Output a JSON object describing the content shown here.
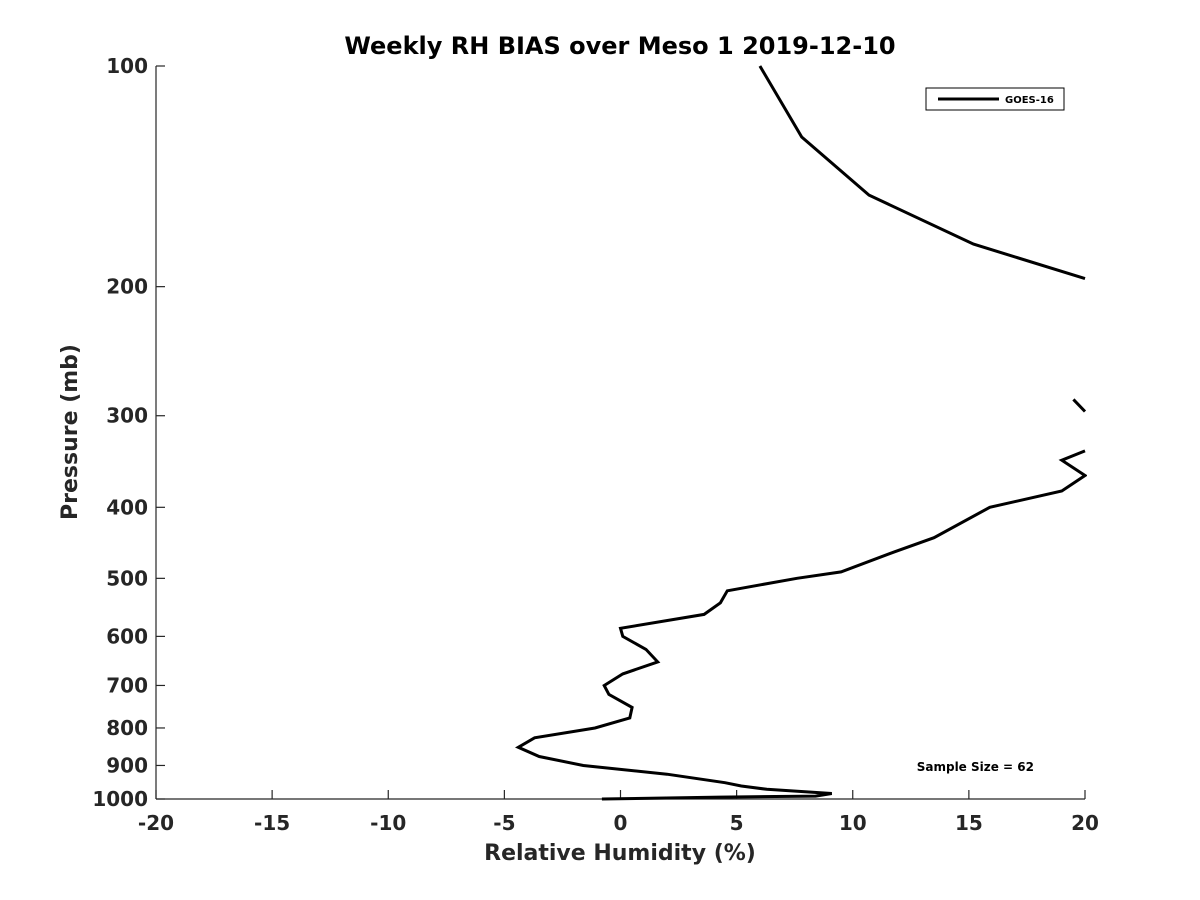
{
  "chart_data": {
    "type": "line",
    "title": "Weekly RH BIAS over Meso 1 2019-12-10",
    "xlabel": "Relative Humidity (%)",
    "ylabel": "Pressure (mb)",
    "xlim": [
      -20,
      20
    ],
    "ylim": [
      100,
      1000
    ],
    "y_scale": "log",
    "y_reversed": true,
    "x_ticks": [
      -20,
      -15,
      -10,
      -5,
      0,
      5,
      10,
      15,
      20
    ],
    "y_ticks": [
      100,
      200,
      300,
      400,
      500,
      600,
      700,
      800,
      900,
      1000
    ],
    "grid": false,
    "legend_position": "top-right",
    "annotation": "Sample Size = 62",
    "series": [
      {
        "name": "GOES-16",
        "color": "#000000",
        "segments": [
          [
            [
              6.0,
              100
            ],
            [
              7.8,
              125
            ],
            [
              10.7,
              150
            ],
            [
              15.2,
              175
            ],
            [
              20.0,
              195
            ]
          ],
          [
            [
              19.5,
              285
            ],
            [
              20.0,
              296
            ]
          ],
          [
            [
              20.0,
              335
            ],
            [
              19.0,
              345
            ],
            [
              20.0,
              362
            ],
            [
              19.0,
              380
            ],
            [
              15.9,
              400
            ],
            [
              13.5,
              440
            ],
            [
              11.8,
              460
            ],
            [
              9.5,
              490
            ],
            [
              7.6,
              500
            ],
            [
              4.6,
              520
            ],
            [
              4.3,
              540
            ],
            [
              3.6,
              560
            ],
            [
              0.0,
              585
            ],
            [
              0.1,
              600
            ],
            [
              1.1,
              625
            ],
            [
              1.6,
              650
            ],
            [
              0.1,
              675
            ],
            [
              -0.7,
              700
            ],
            [
              -0.5,
              720
            ],
            [
              0.5,
              750
            ],
            [
              0.4,
              775
            ],
            [
              -1.1,
              800
            ],
            [
              -3.7,
              825
            ],
            [
              -4.4,
              850
            ],
            [
              -3.5,
              875
            ],
            [
              -1.6,
              900
            ],
            [
              2.0,
              925
            ],
            [
              4.5,
              950
            ],
            [
              5.2,
              960
            ],
            [
              6.3,
              970
            ],
            [
              9.1,
              983
            ],
            [
              8.4,
              991
            ],
            [
              4.3,
              994
            ],
            [
              -0.8,
              1000
            ]
          ]
        ]
      }
    ]
  }
}
